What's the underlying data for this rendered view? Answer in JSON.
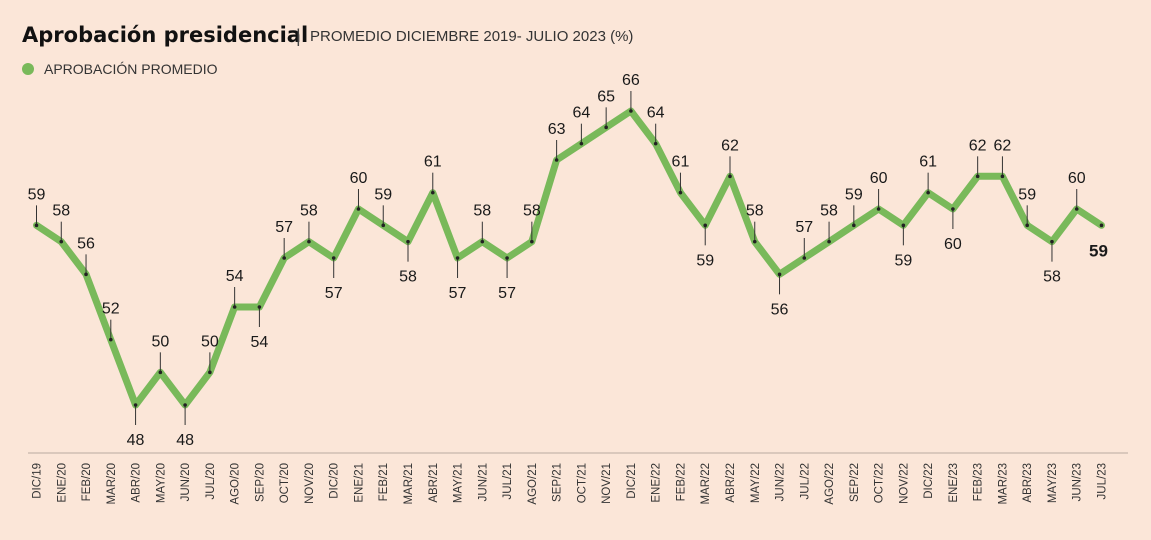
{
  "title": "Aprobación presidencial",
  "title_separator": "|",
  "subtitle": "PROMEDIO DICIEMBRE 2019- JULIO 2023 (%)",
  "colors": {
    "background": "#fbe6d8",
    "line": "#79b95a",
    "text": "#1a1a1a"
  },
  "chart_data": {
    "type": "line",
    "title": "Aprobación presidencial",
    "subtitle": "PROMEDIO DICIEMBRE 2019- JULIO 2023 (%)",
    "legend": "top-left",
    "grid": false,
    "ylim": [
      46,
      67
    ],
    "categories": [
      "DIC/19",
      "ENE/20",
      "FEB/20",
      "MAR/20",
      "ABR/20",
      "MAY/20",
      "JUN/20",
      "JUL/20",
      "AGO/20",
      "SEP/20",
      "OCT/20",
      "NOV/20",
      "DIC/20",
      "ENE/21",
      "FEB/21",
      "MAR/21",
      "ABR/21",
      "MAY/21",
      "JUN/21",
      "JUL/21",
      "AGO/21",
      "SEP/21",
      "OCT/21",
      "NOV/21",
      "DIC/21",
      "ENE/22",
      "FEB/22",
      "MAR/22",
      "ABR/22",
      "MAY/22",
      "JUN/22",
      "JUL/22",
      "AGO/22",
      "SEP/22",
      "OCT/22",
      "NOV/22",
      "DIC/22",
      "ENE/23",
      "FEB/23",
      "MAR/23",
      "ABR/23",
      "MAY/23",
      "JUN/23",
      "JUL/23"
    ],
    "series": [
      {
        "name": "APROBACIÓN PROMEDIO",
        "color": "#79b95a",
        "values": [
          59,
          58,
          56,
          52,
          48,
          50,
          48,
          50,
          54,
          54,
          57,
          58,
          57,
          60,
          59,
          58,
          61,
          57,
          58,
          57,
          58,
          63,
          64,
          65,
          66,
          64,
          61,
          59,
          62,
          58,
          56,
          57,
          58,
          59,
          60,
          59,
          61,
          60,
          62,
          62,
          59,
          58,
          60,
          59
        ],
        "label_positions": [
          "above",
          "above",
          "above",
          "above",
          "below",
          "above",
          "below",
          "above",
          "above",
          "below",
          "above",
          "above",
          "below",
          "above",
          "above",
          "below",
          "above",
          "below",
          "above",
          "below",
          "above",
          "above",
          "above",
          "above",
          "above",
          "above",
          "above",
          "below",
          "above",
          "above",
          "below",
          "above",
          "above",
          "above",
          "above",
          "below",
          "above",
          "below",
          "above",
          "above",
          "above",
          "below",
          "above",
          "right"
        ]
      }
    ]
  }
}
